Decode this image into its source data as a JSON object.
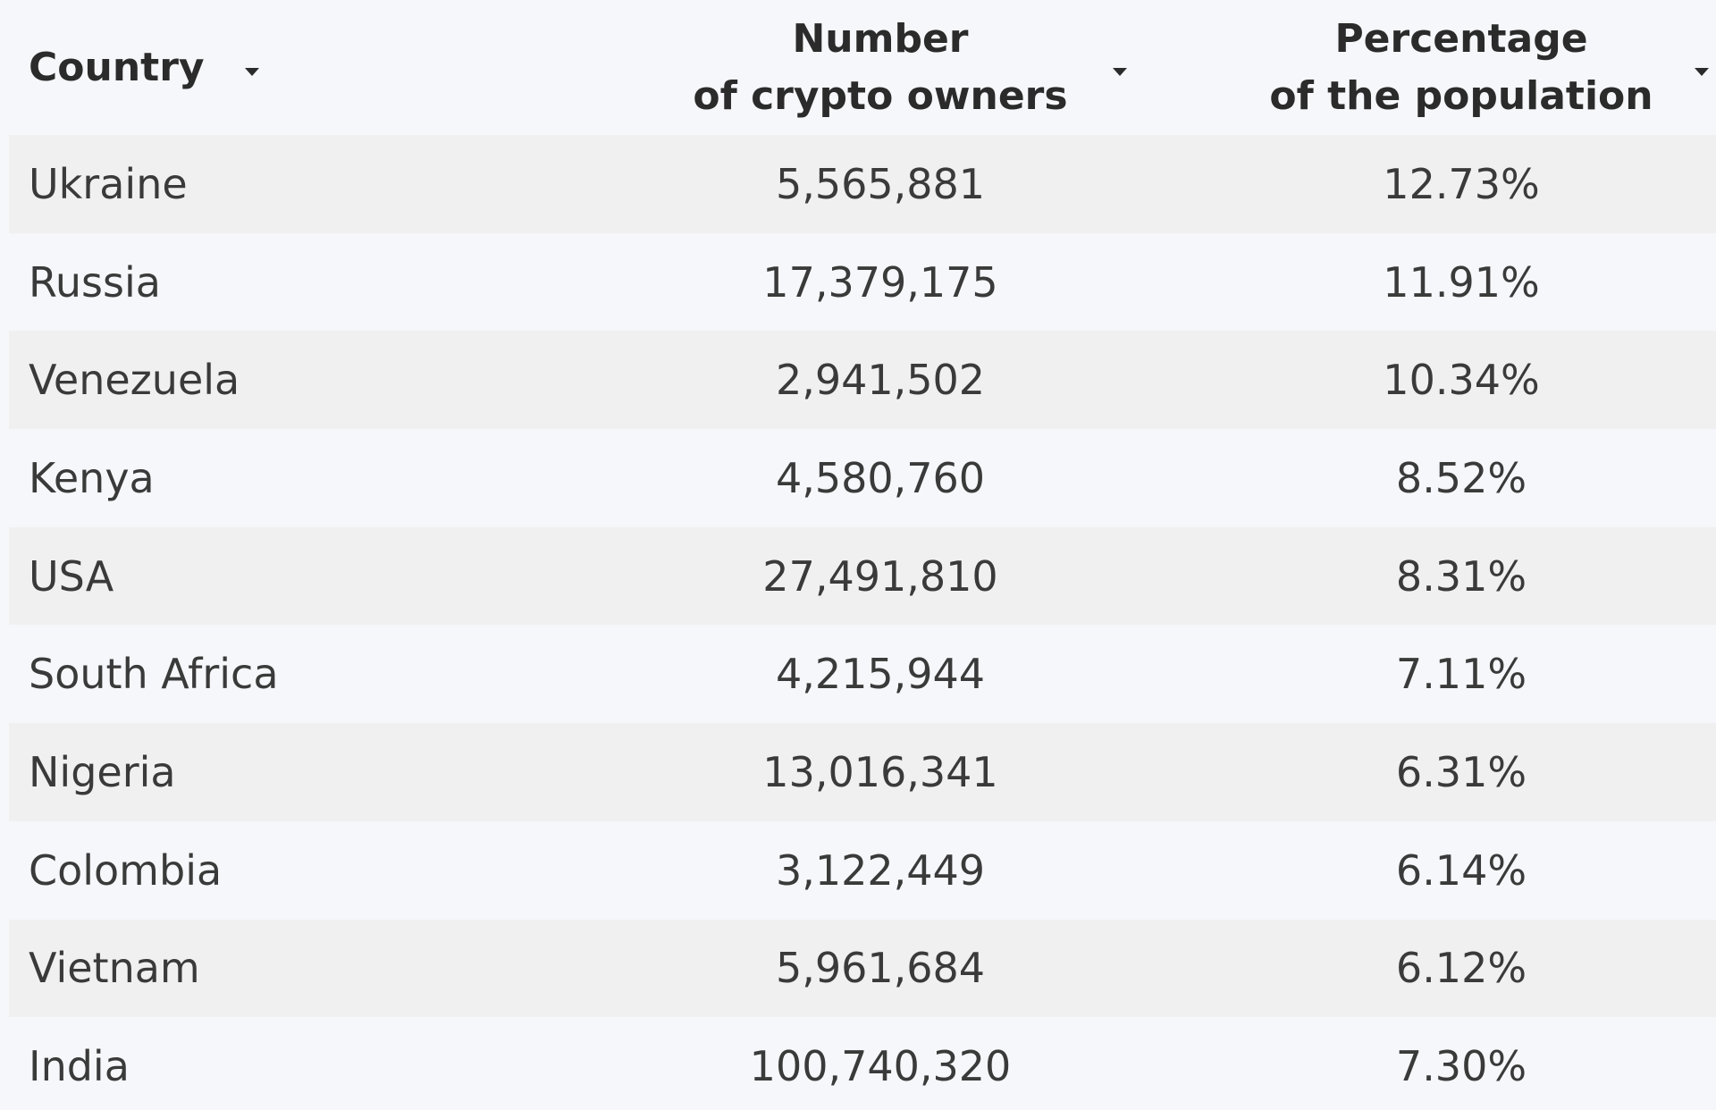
{
  "chart_data": {
    "type": "table",
    "columns": [
      {
        "label_lines": [
          "Country"
        ]
      },
      {
        "label_lines": [
          "Number",
          "of crypto owners"
        ]
      },
      {
        "label_lines": [
          "Percentage",
          "of the population"
        ]
      }
    ],
    "rows": [
      {
        "country": "Ukraine",
        "owners": "5,565,881",
        "percentage": "12.73%"
      },
      {
        "country": "Russia",
        "owners": "17,379,175",
        "percentage": "11.91%"
      },
      {
        "country": "Venezuela",
        "owners": "2,941,502",
        "percentage": "10.34%"
      },
      {
        "country": "Kenya",
        "owners": "4,580,760",
        "percentage": "8.52%"
      },
      {
        "country": "USA",
        "owners": "27,491,810",
        "percentage": "8.31%"
      },
      {
        "country": "South Africa",
        "owners": "4,215,944",
        "percentage": "7.11%"
      },
      {
        "country": "Nigeria",
        "owners": "13,016,341",
        "percentage": "6.31%"
      },
      {
        "country": "Colombia",
        "owners": "3,122,449",
        "percentage": "6.14%"
      },
      {
        "country": "Vietnam",
        "owners": "5,961,684",
        "percentage": "6.12%"
      },
      {
        "country": "India",
        "owners": "100,740,320",
        "percentage": "7.30%"
      }
    ]
  },
  "icons": {
    "sort": "caret-down-icon"
  },
  "colors": {
    "background": "#f6f7fa",
    "stripe": "#f0f0f1",
    "header_text": "#2b2b2b",
    "cell_text": "#3a3a3a"
  }
}
